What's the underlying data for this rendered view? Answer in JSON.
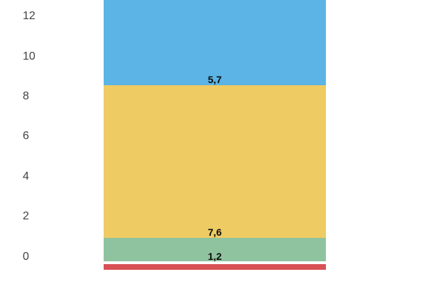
{
  "chart_data": {
    "type": "bar",
    "stacked": true,
    "orientation": "vertical",
    "title": "",
    "background": "#ffffff",
    "grid": false,
    "legend": "none",
    "categories": [
      ""
    ],
    "decimal_separator": ",",
    "y_axis": {
      "tick_labels": [
        "0",
        "2",
        "4",
        "6",
        "8",
        "10",
        "12"
      ],
      "tick_values": [
        0,
        2,
        4,
        6,
        8,
        10,
        12
      ],
      "visible_range": [
        -1.1,
        13.1
      ],
      "label_color": "#424242"
    },
    "series": [
      {
        "name": "red",
        "value": 0.3,
        "label": "",
        "color": "#d85155",
        "below_axis": true
      },
      {
        "name": "green",
        "value": 1.2,
        "label": "1,2",
        "color": "#8fc3a0",
        "below_axis": false
      },
      {
        "name": "yellow",
        "value": 7.6,
        "label": "7,6",
        "color": "#eecb63",
        "below_axis": false
      },
      {
        "name": "blue",
        "value": 5.7,
        "label": "5,7",
        "color": "#5bb4e5",
        "below_axis": false
      }
    ],
    "value_label_color": "#0b0b0b",
    "layout_note": "single wide column; blue segment total exceeds visible top and is clipped; red band sits just below the zero baseline"
  }
}
